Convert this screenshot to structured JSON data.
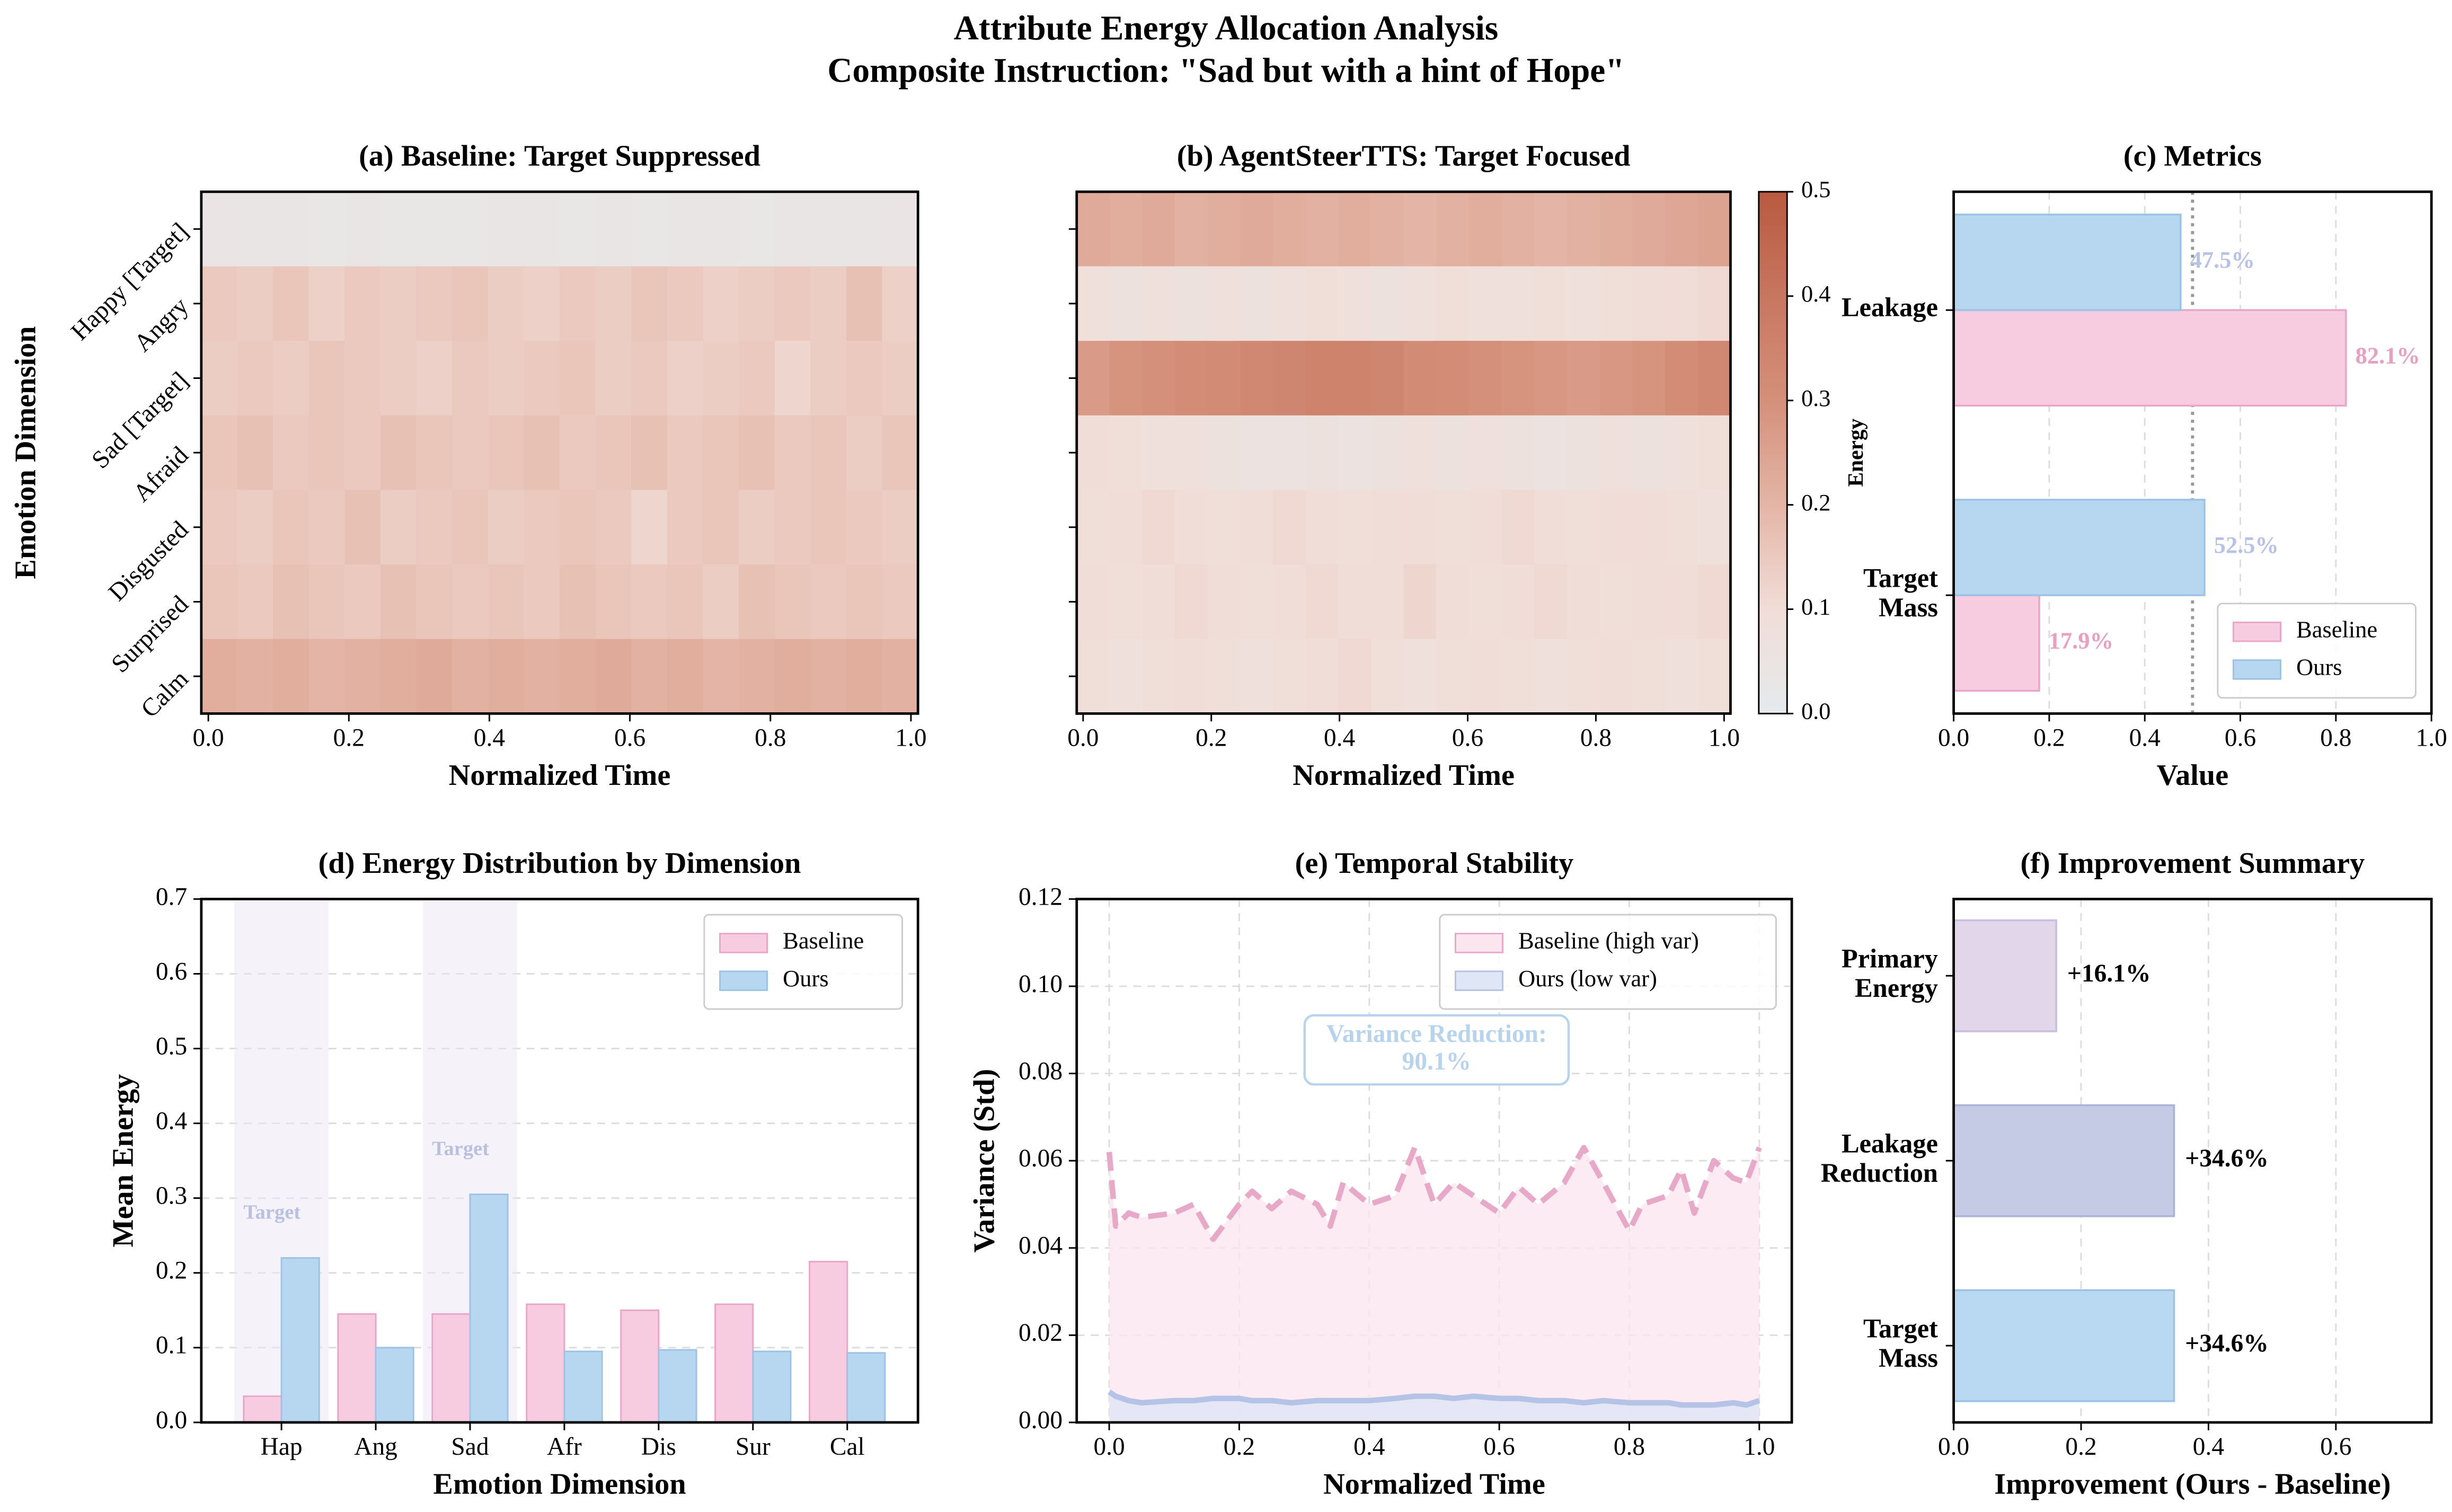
{
  "title": "Attribute Energy Allocation Analysis",
  "subtitle": "Composite Instruction: \"Sad but with a hint of Hope\"",
  "chart_data": [
    {
      "type": "heatmap",
      "title": "(a) Baseline: Target Suppressed",
      "xlabel": "Normalized Time",
      "ylabel": "Emotion Dimension",
      "categories": [
        "Happy [Target]",
        "Angry",
        "Sad [Target]",
        "Afraid",
        "Disgusted",
        "Surprised",
        "Calm"
      ],
      "values": [
        [
          0.04,
          0.035,
          0.038,
          0.033,
          0.036,
          0.03,
          0.034,
          0.032,
          0.035,
          0.037,
          0.034,
          0.036,
          0.033,
          0.035,
          0.038,
          0.034,
          0.036,
          0.035,
          0.037,
          0.039
        ],
        [
          0.15,
          0.14,
          0.16,
          0.13,
          0.15,
          0.14,
          0.15,
          0.16,
          0.14,
          0.13,
          0.15,
          0.14,
          0.16,
          0.15,
          0.13,
          0.14,
          0.15,
          0.14,
          0.17,
          0.13
        ],
        [
          0.14,
          0.15,
          0.14,
          0.16,
          0.15,
          0.14,
          0.13,
          0.15,
          0.14,
          0.15,
          0.16,
          0.14,
          0.15,
          0.13,
          0.14,
          0.15,
          0.12,
          0.14,
          0.15,
          0.14
        ],
        [
          0.16,
          0.17,
          0.15,
          0.16,
          0.15,
          0.17,
          0.16,
          0.15,
          0.16,
          0.17,
          0.15,
          0.16,
          0.17,
          0.15,
          0.16,
          0.17,
          0.15,
          0.16,
          0.14,
          0.16
        ],
        [
          0.15,
          0.14,
          0.16,
          0.15,
          0.17,
          0.14,
          0.15,
          0.16,
          0.14,
          0.15,
          0.16,
          0.15,
          0.12,
          0.15,
          0.16,
          0.14,
          0.15,
          0.16,
          0.15,
          0.14
        ],
        [
          0.16,
          0.15,
          0.17,
          0.16,
          0.15,
          0.17,
          0.16,
          0.15,
          0.16,
          0.15,
          0.17,
          0.16,
          0.15,
          0.16,
          0.14,
          0.17,
          0.16,
          0.15,
          0.16,
          0.15
        ],
        [
          0.22,
          0.21,
          0.22,
          0.2,
          0.21,
          0.22,
          0.23,
          0.21,
          0.22,
          0.21,
          0.22,
          0.23,
          0.21,
          0.22,
          0.2,
          0.21,
          0.22,
          0.21,
          0.22,
          0.21
        ]
      ],
      "xlim": [
        -0.01,
        1.01
      ],
      "xticks": [
        {
          "value": 0,
          "label": "0.0"
        },
        {
          "value": 0.2,
          "label": "0.2"
        },
        {
          "value": 0.4,
          "label": "0.4"
        },
        {
          "value": 0.6,
          "label": "0.6"
        },
        {
          "value": 0.8,
          "label": "0.8"
        },
        {
          "value": 1,
          "label": "1.0"
        }
      ],
      "colormap": [
        "#e5eaed",
        "#f1ddd7",
        "#e4b5a6",
        "#d4907a",
        "#c87660",
        "#b85a40"
      ],
      "zlim": [
        0,
        0.5
      ]
    },
    {
      "type": "heatmap",
      "title": "(b) AgentSteerTTS: Target Focused",
      "xlabel": "Normalized Time",
      "values": [
        [
          0.23,
          0.22,
          0.23,
          0.21,
          0.22,
          0.23,
          0.22,
          0.21,
          0.22,
          0.21,
          0.2,
          0.21,
          0.22,
          0.21,
          0.2,
          0.21,
          0.22,
          0.23,
          0.24,
          0.25
        ],
        [
          0.08,
          0.07,
          0.08,
          0.07,
          0.08,
          0.07,
          0.08,
          0.09,
          0.08,
          0.07,
          0.08,
          0.09,
          0.08,
          0.08,
          0.09,
          0.08,
          0.09,
          0.1,
          0.1,
          0.11
        ],
        [
          0.27,
          0.29,
          0.3,
          0.31,
          0.32,
          0.33,
          0.34,
          0.35,
          0.35,
          0.34,
          0.32,
          0.31,
          0.3,
          0.29,
          0.28,
          0.27,
          0.28,
          0.29,
          0.31,
          0.33
        ],
        [
          0.1,
          0.09,
          0.08,
          0.08,
          0.07,
          0.06,
          0.06,
          0.07,
          0.06,
          0.07,
          0.08,
          0.07,
          0.08,
          0.07,
          0.06,
          0.07,
          0.08,
          0.07,
          0.08,
          0.09
        ],
        [
          0.09,
          0.1,
          0.11,
          0.1,
          0.09,
          0.1,
          0.11,
          0.1,
          0.09,
          0.1,
          0.1,
          0.09,
          0.1,
          0.11,
          0.1,
          0.09,
          0.1,
          0.1,
          0.09,
          0.08
        ],
        [
          0.1,
          0.09,
          0.1,
          0.11,
          0.1,
          0.09,
          0.1,
          0.11,
          0.1,
          0.1,
          0.12,
          0.1,
          0.09,
          0.1,
          0.11,
          0.1,
          0.09,
          0.1,
          0.1,
          0.11
        ],
        [
          0.09,
          0.08,
          0.09,
          0.1,
          0.09,
          0.08,
          0.09,
          0.1,
          0.11,
          0.09,
          0.08,
          0.09,
          0.1,
          0.09,
          0.08,
          0.09,
          0.1,
          0.09,
          0.08,
          0.09
        ]
      ],
      "xlim": [
        -0.01,
        1.01
      ],
      "xticks": [
        {
          "value": 0,
          "label": "0.0"
        },
        {
          "value": 0.2,
          "label": "0.2"
        },
        {
          "value": 0.4,
          "label": "0.4"
        },
        {
          "value": 0.6,
          "label": "0.6"
        },
        {
          "value": 0.8,
          "label": "0.8"
        },
        {
          "value": 1,
          "label": "1.0"
        }
      ],
      "colormap": [
        "#e5eaed",
        "#f1ddd7",
        "#e4b5a6",
        "#d4907a",
        "#c87660",
        "#b85a40"
      ],
      "zlim": [
        0,
        0.5
      ],
      "zticks": [
        {
          "value": 0,
          "label": "0.0"
        },
        {
          "value": 0.1,
          "label": "0.1"
        },
        {
          "value": 0.2,
          "label": "0.2"
        },
        {
          "value": 0.3,
          "label": "0.3"
        },
        {
          "value": 0.4,
          "label": "0.4"
        },
        {
          "value": 0.5,
          "label": "0.5"
        }
      ],
      "zlabel": "Energy"
    },
    {
      "type": "hbar",
      "title": "(c) Metrics",
      "xlabel": "Value",
      "categories": [
        "Leakage",
        "Target\nMass"
      ],
      "series": [
        {
          "name": "Baseline",
          "color": "#f7cce0",
          "edgecolor": "#eaa6c6",
          "label_color": "#e8a0c0",
          "values": [
            0.821,
            0.179
          ],
          "value_labels": [
            "82.1%",
            "17.9%"
          ]
        },
        {
          "name": "Ours",
          "color": "#b7d7f0",
          "edgecolor": "#9cc3e6",
          "label_color": "#b8c2e6",
          "values": [
            0.475,
            0.525
          ],
          "value_labels": [
            "47.5%",
            "52.5%"
          ]
        }
      ],
      "xlim": [
        0,
        1
      ],
      "xticks": [
        {
          "value": 0,
          "label": "0.0"
        },
        {
          "value": 0.2,
          "label": "0.2"
        },
        {
          "value": 0.4,
          "label": "0.4"
        },
        {
          "value": 0.6,
          "label": "0.6"
        },
        {
          "value": 0.8,
          "label": "0.8"
        },
        {
          "value": 1,
          "label": "1.0"
        }
      ],
      "reference_line": 0.5,
      "legend": "lower right",
      "grid": "x"
    },
    {
      "type": "bar",
      "title": "(d) Energy Distribution by Dimension",
      "xlabel": "Emotion Dimension",
      "ylabel": "Mean Energy",
      "categories": [
        "Hap",
        "Ang",
        "Sad",
        "Afr",
        "Dis",
        "Sur",
        "Cal"
      ],
      "series": [
        {
          "name": "Baseline",
          "color": "#f7cce0",
          "edgecolor": "#eaa6c6",
          "values": [
            0.035,
            0.145,
            0.145,
            0.158,
            0.15,
            0.158,
            0.215
          ]
        },
        {
          "name": "Ours",
          "color": "#b7d7f0",
          "edgecolor": "#9cc3e6",
          "values": [
            0.22,
            0.1,
            0.305,
            0.095,
            0.097,
            0.095,
            0.093
          ]
        }
      ],
      "ylim": [
        0,
        0.7
      ],
      "yticks": [
        {
          "value": 0,
          "label": "0.0"
        },
        {
          "value": 0.1,
          "label": "0.1"
        },
        {
          "value": 0.2,
          "label": "0.2"
        },
        {
          "value": 0.3,
          "label": "0.3"
        },
        {
          "value": 0.4,
          "label": "0.4"
        },
        {
          "value": 0.5,
          "label": "0.5"
        },
        {
          "value": 0.6,
          "label": "0.6"
        },
        {
          "value": 0.7,
          "label": "0.7"
        }
      ],
      "highlight": [
        "Hap",
        "Sad"
      ],
      "highlight_label": "Target",
      "legend": "upper right",
      "grid": "y"
    },
    {
      "type": "line",
      "title": "(e) Temporal Stability",
      "xlabel": "Normalized Time",
      "ylabel": "Variance (Std)",
      "x": [
        0,
        0.01,
        0.03,
        0.05,
        0.1,
        0.13,
        0.16,
        0.2,
        0.22,
        0.25,
        0.28,
        0.32,
        0.34,
        0.36,
        0.4,
        0.44,
        0.47,
        0.5,
        0.53,
        0.56,
        0.6,
        0.63,
        0.66,
        0.7,
        0.73,
        0.76,
        0.8,
        0.82,
        0.86,
        0.88,
        0.9,
        0.93,
        0.96,
        0.98,
        1.0
      ],
      "series": [
        {
          "name": "Baseline (high var)",
          "color": "#e8a8c8",
          "fill": "#fbe6ef",
          "dashed": true,
          "values": [
            0.062,
            0.045,
            0.048,
            0.047,
            0.048,
            0.05,
            0.042,
            0.05,
            0.053,
            0.049,
            0.053,
            0.05,
            0.045,
            0.055,
            0.05,
            0.052,
            0.063,
            0.05,
            0.055,
            0.052,
            0.048,
            0.054,
            0.05,
            0.055,
            0.063,
            0.055,
            0.044,
            0.05,
            0.052,
            0.058,
            0.048,
            0.06,
            0.056,
            0.055,
            0.063
          ]
        },
        {
          "name": "Ours (low var)",
          "color": "#b5c3e6",
          "fill": "#dfe6f6",
          "dashed": false,
          "values": [
            0.007,
            0.006,
            0.005,
            0.0045,
            0.005,
            0.005,
            0.0055,
            0.0055,
            0.005,
            0.005,
            0.0045,
            0.005,
            0.005,
            0.005,
            0.005,
            0.0055,
            0.006,
            0.006,
            0.0055,
            0.006,
            0.0055,
            0.0055,
            0.005,
            0.005,
            0.0045,
            0.005,
            0.0045,
            0.0045,
            0.0045,
            0.004,
            0.004,
            0.004,
            0.0045,
            0.004,
            0.005
          ]
        }
      ],
      "xlim": [
        -0.05,
        1.05
      ],
      "xticks": [
        {
          "value": 0,
          "label": "0.0"
        },
        {
          "value": 0.2,
          "label": "0.2"
        },
        {
          "value": 0.4,
          "label": "0.4"
        },
        {
          "value": 0.6,
          "label": "0.6"
        },
        {
          "value": 0.8,
          "label": "0.8"
        },
        {
          "value": 1,
          "label": "1.0"
        }
      ],
      "ylim": [
        0,
        0.12
      ],
      "yticks": [
        {
          "value": 0,
          "label": "0.00"
        },
        {
          "value": 0.02,
          "label": "0.02"
        },
        {
          "value": 0.04,
          "label": "0.04"
        },
        {
          "value": 0.06,
          "label": "0.06"
        },
        {
          "value": 0.08,
          "label": "0.08"
        },
        {
          "value": 0.1,
          "label": "0.10"
        },
        {
          "value": 0.12,
          "label": "0.12"
        }
      ],
      "annotation": "Variance Reduction:\n90.1%",
      "legend": "upper right",
      "grid": "both"
    },
    {
      "type": "hbar",
      "title": "(f) Improvement Summary",
      "xlabel": "Improvement (Ours - Baseline)",
      "categories": [
        "Primary\nEnergy",
        "Leakage\nReduction",
        "Target\nMass"
      ],
      "values": [
        0.161,
        0.346,
        0.346
      ],
      "value_labels": [
        "+16.1%",
        "+34.6%",
        "+34.6%"
      ],
      "colors": [
        "#e2d6eb",
        "#c6cbe5",
        "#b9d8f1"
      ],
      "edgecolors": [
        "#c9bde0",
        "#aab3d8",
        "#9cc3e6"
      ],
      "xlim": [
        0,
        0.75
      ],
      "xticks": [
        {
          "value": 0,
          "label": "0.0"
        },
        {
          "value": 0.2,
          "label": "0.2"
        },
        {
          "value": 0.4,
          "label": "0.4"
        },
        {
          "value": 0.6,
          "label": "0.6"
        }
      ],
      "grid": "x"
    }
  ]
}
